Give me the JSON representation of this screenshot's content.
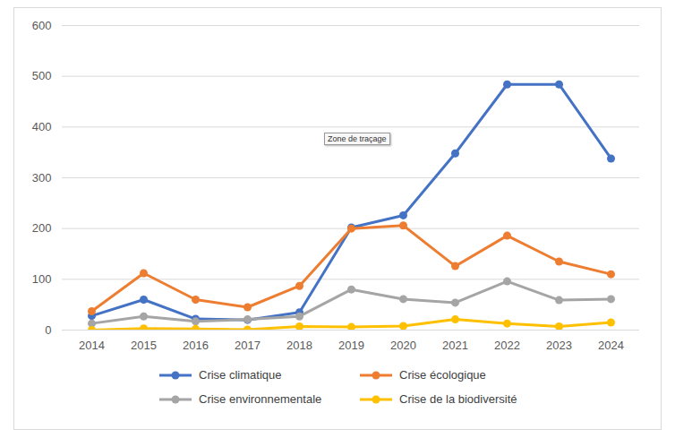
{
  "chart_data": {
    "type": "line",
    "categories": [
      "2014",
      "2015",
      "2016",
      "2017",
      "2018",
      "2019",
      "2020",
      "2021",
      "2022",
      "2023",
      "2024"
    ],
    "series": [
      {
        "name": "Crise climatique",
        "color": "#4472c4",
        "values": [
          28,
          60,
          22,
          20,
          35,
          202,
          226,
          348,
          484,
          484,
          338
        ]
      },
      {
        "name": "Crise écologique",
        "color": "#ed7d31",
        "values": [
          37,
          112,
          60,
          45,
          87,
          200,
          206,
          126,
          186,
          135,
          110
        ]
      },
      {
        "name": "Crise environnementale",
        "color": "#a5a5a5",
        "values": [
          13,
          27,
          17,
          21,
          27,
          80,
          61,
          54,
          96,
          59,
          61
        ]
      },
      {
        "name": "Crise de la biodiversité",
        "color": "#ffc000",
        "values": [
          0,
          3,
          2,
          1,
          7,
          6,
          8,
          21,
          13,
          7,
          15
        ]
      }
    ],
    "ylim": [
      0,
      600
    ],
    "yticks": [
      0,
      100,
      200,
      300,
      400,
      500,
      600
    ],
    "grid": true,
    "legend": "bottom",
    "marker": "circle",
    "annotation": "Zone de traçage"
  }
}
